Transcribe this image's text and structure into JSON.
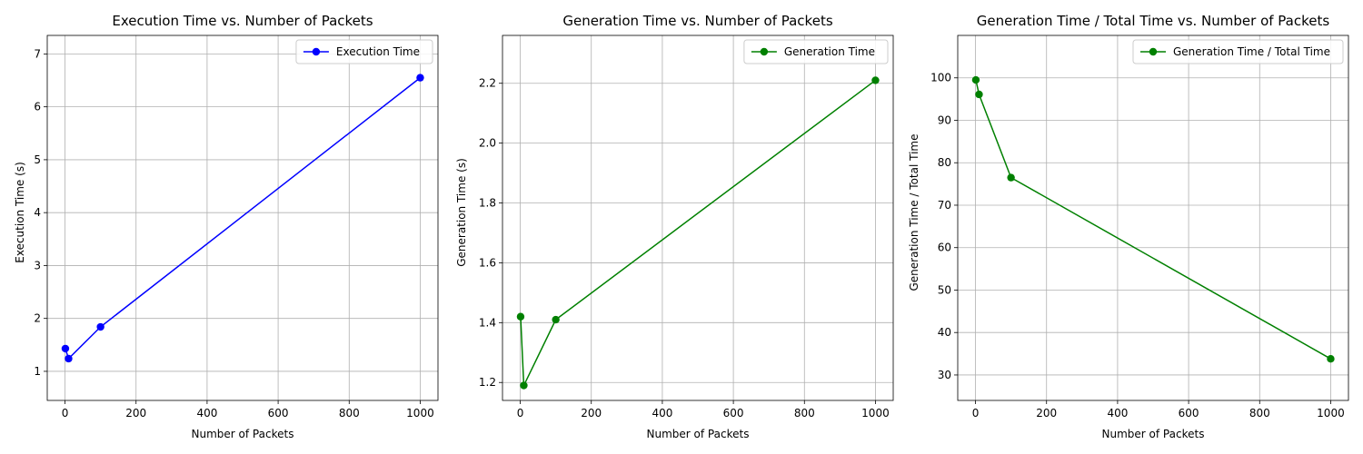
{
  "chart_data": [
    {
      "type": "line",
      "title": "Execution Time vs. Number of Packets",
      "xlabel": "Number of Packets",
      "ylabel": "Execution Time (s)",
      "xlim": [
        -50,
        1050
      ],
      "ylim": [
        0.45,
        7.35
      ],
      "xticks": [
        0,
        200,
        400,
        600,
        800,
        1000
      ],
      "yticks": [
        1,
        2,
        3,
        4,
        5,
        6,
        7
      ],
      "grid": true,
      "legend_position": "upper right",
      "series": [
        {
          "name": "Execution Time",
          "color": "#0000ff",
          "marker": "circle",
          "x": [
            1,
            10,
            100,
            1000
          ],
          "y": [
            1.43,
            1.24,
            1.84,
            6.55
          ]
        }
      ]
    },
    {
      "type": "line",
      "title": "Generation Time vs. Number of Packets",
      "xlabel": "Number of Packets",
      "ylabel": "Generation Time (s)",
      "xlim": [
        -50,
        1050
      ],
      "ylim": [
        1.14,
        2.36
      ],
      "xticks": [
        0,
        200,
        400,
        600,
        800,
        1000
      ],
      "yticks": [
        1.2,
        1.4,
        1.6,
        1.8,
        2.0,
        2.2
      ],
      "ytick_decimals": 1,
      "grid": true,
      "legend_position": "upper right",
      "series": [
        {
          "name": "Generation Time",
          "color": "#008000",
          "marker": "circle",
          "x": [
            1,
            10,
            100,
            1000
          ],
          "y": [
            1.42,
            1.19,
            1.41,
            2.21
          ]
        }
      ]
    },
    {
      "type": "line",
      "title": "Generation Time / Total Time vs. Number of Packets",
      "xlabel": "Number of Packets",
      "ylabel": "Generation Time / Total Time",
      "xlim": [
        -50,
        1050
      ],
      "ylim": [
        24,
        110
      ],
      "xticks": [
        0,
        200,
        400,
        600,
        800,
        1000
      ],
      "yticks": [
        30,
        40,
        50,
        60,
        70,
        80,
        90,
        100
      ],
      "grid": true,
      "legend_position": "upper right",
      "series": [
        {
          "name": "Generation Time / Total Time",
          "color": "#008000",
          "marker": "circle",
          "x": [
            1,
            10,
            100,
            1000
          ],
          "y": [
            99.5,
            96.1,
            76.5,
            33.8
          ]
        }
      ]
    }
  ]
}
